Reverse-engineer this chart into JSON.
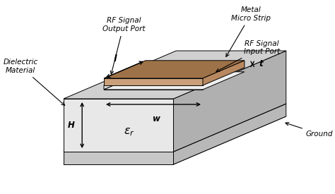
{
  "bg_color": "#ffffff",
  "dielectric_front_color": "#e8e8e8",
  "dielectric_top_color": "#d0d0d0",
  "dielectric_right_color": "#b0b0b0",
  "dielectric_bottom_color": "#c0c0c0",
  "ground_color": "#d8d8d8",
  "strip_top_color": "#9e7248",
  "strip_front_color": "#c9a07a",
  "strip_right_color": "#b88860",
  "strip_base_color": "#e8e8e8",
  "labels": {
    "dielectric_material": "Dielectric\nMaterial",
    "metal_micro_strip": "Metal\nMicro Strip",
    "rf_output": "RF Signal\nOutput Port",
    "rf_input": "RF Signal\nInput Port",
    "H": "H",
    "w": "w",
    "l": "l",
    "t": "t",
    "eps_r": "$\\boldsymbol{\\varepsilon_r}$",
    "ground": "Ground"
  }
}
